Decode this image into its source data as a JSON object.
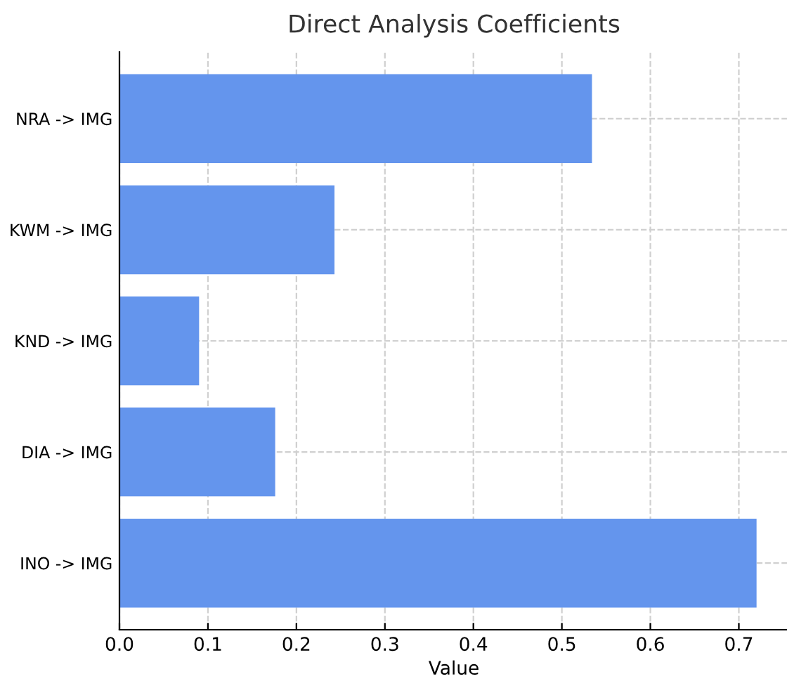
{
  "chart_data": {
    "type": "bar",
    "orientation": "horizontal",
    "title": "Direct Analysis Coefficients",
    "xlabel": "Value",
    "categories": [
      "NRA -> IMG",
      "KWM -> IMG",
      "KND -> IMG",
      "DIA -> IMG",
      "INO -> IMG"
    ],
    "values": [
      0.534,
      0.243,
      0.09,
      0.176,
      0.72
    ],
    "color": "#6495ed",
    "xlim": [
      0,
      0.756
    ],
    "xticks": [
      {
        "value": 0,
        "label": "0.0"
      },
      0.1,
      0.2,
      0.3,
      0.4,
      0.5,
      0.6,
      0.7
    ],
    "grid": true
  }
}
